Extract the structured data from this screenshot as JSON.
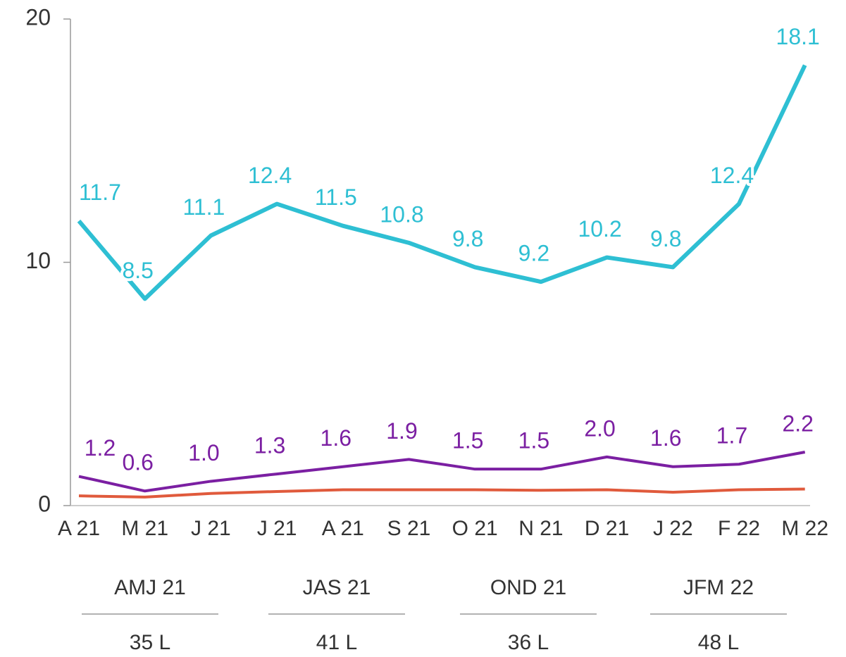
{
  "chart_data": {
    "type": "line",
    "categories": [
      "A 21",
      "M 21",
      "J 21",
      "J 21",
      "A 21",
      "S 21",
      "O 21",
      "N 21",
      "D  21",
      "J 22",
      "F 22",
      "M 22"
    ],
    "series": [
      {
        "color": "#2ebfd3",
        "values": [
          11.7,
          8.5,
          11.1,
          12.4,
          11.5,
          10.8,
          9.8,
          9.2,
          10.2,
          9.8,
          12.4,
          18.1
        ],
        "value_labels": [
          "11.7",
          "8.5",
          "11.1",
          "12.4",
          "11.5",
          "10.8",
          "9.8",
          "9.2",
          "10.2",
          "9.8",
          "12.4",
          "18.1"
        ]
      },
      {
        "color": "#7b1fa2",
        "values": [
          1.2,
          0.6,
          1.0,
          1.3,
          1.6,
          1.9,
          1.5,
          1.5,
          2.0,
          1.6,
          1.7,
          2.2
        ],
        "value_labels": [
          "1.2",
          "0.6",
          "1.0",
          "1.3",
          "1.6",
          "1.9",
          "1.5",
          "1.5",
          "2.0",
          "1.6",
          "1.7",
          "2.2"
        ]
      },
      {
        "color": "#e05a3c",
        "values": [
          0.4,
          0.35,
          0.5,
          0.58,
          0.65,
          0.65,
          0.65,
          0.63,
          0.65,
          0.55,
          0.65,
          0.68
        ]
      }
    ],
    "groups": [
      {
        "label": "AMJ 21",
        "total": "35 L"
      },
      {
        "label": "JAS 21",
        "total": "41 L"
      },
      {
        "label": "OND 21",
        "total": "36 L"
      },
      {
        "label": "JFM 22",
        "total": "48 L"
      }
    ],
    "ylim": [
      0,
      20
    ],
    "yticks": [
      0,
      10,
      20
    ]
  }
}
